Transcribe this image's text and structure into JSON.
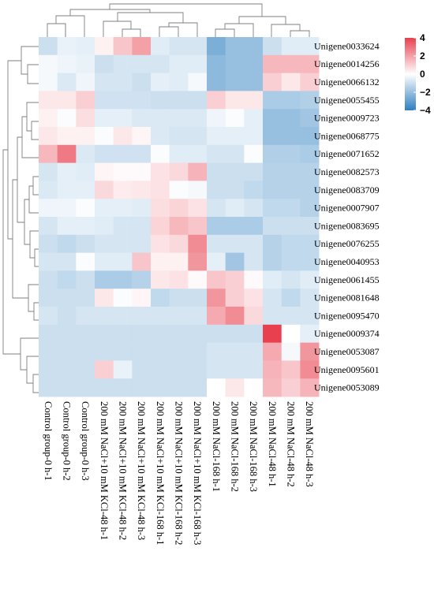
{
  "chart_data": {
    "type": "heatmap",
    "title": "",
    "rows": [
      "Unigene0033624",
      "Unigene0014256",
      "Unigene0066132",
      "Unigene0055455",
      "Unigene0009723",
      "Unigene0068775",
      "Unigene0071652",
      "Unigene0082573",
      "Unigene0083709",
      "Unigene0007907",
      "Unigene0083695",
      "Unigene0076255",
      "Unigene0040953",
      "Unigene0061455",
      "Unigene0081648",
      "Unigene0095470",
      "Unigene0009374",
      "Unigene0053087",
      "Unigene0095601",
      "Unigene0053089"
    ],
    "columns": [
      "Control group-0 h-1",
      "Control group-0 h-2",
      "Control group-0 h-3",
      "200 mM NaCl+10 mM KCl-48 h-1",
      "200 mM NaCl+10 mM KCl-48 h-2",
      "200 mM NaCl+10 mM KCl-48 h-3",
      "200 mM NaCl+10 mM KCl-168 h-1",
      "200 mM NaCl+10 mM KCl-168 h-2",
      "200 mM NaCl+10 mM KCl-168 h-3",
      "200 mM NaCl-168 h-1",
      "200 mM NaCl-168 h-2",
      "200 mM NaCl-168 h-3",
      "200 mM NaCl-48 h-1",
      "200 mM NaCl-48 h-2",
      "200 mM NaCl-48 h-3"
    ],
    "values": [
      [
        -1.0,
        -0.4,
        -0.5,
        0.3,
        1.2,
        2.0,
        -0.6,
        -0.8,
        -0.8,
        -2.5,
        -2.0,
        -2.0,
        -1.0,
        -0.6,
        -0.6
      ],
      [
        -0.2,
        -0.3,
        -0.4,
        -1.0,
        -0.8,
        -0.8,
        -0.8,
        -0.6,
        -0.6,
        -2.2,
        -2.0,
        -2.0,
        1.5,
        1.5,
        1.5
      ],
      [
        -0.2,
        -0.7,
        -0.3,
        -0.8,
        -0.8,
        -1.0,
        -0.5,
        -0.6,
        -0.2,
        -2.2,
        -2.0,
        -2.0,
        1.0,
        0.5,
        1.0
      ],
      [
        0.5,
        0.5,
        1.0,
        -0.9,
        -0.9,
        -0.9,
        -1.0,
        -1.0,
        -1.0,
        1.0,
        0.5,
        0.5,
        -1.6,
        -1.6,
        -1.5
      ],
      [
        0.3,
        -0.1,
        0.7,
        -0.5,
        -0.5,
        -0.7,
        -0.7,
        -0.7,
        -0.7,
        -0.3,
        -0.1,
        -0.5,
        -2.0,
        -2.0,
        -1.8
      ],
      [
        0.5,
        0.3,
        0.3,
        -0.1,
        0.5,
        0.2,
        -0.7,
        -0.8,
        -0.8,
        -0.5,
        -0.5,
        -0.5,
        -2.0,
        -2.0,
        -2.0
      ],
      [
        1.5,
        2.8,
        -0.7,
        -0.9,
        -0.9,
        -0.9,
        -0.1,
        -0.6,
        -0.6,
        -0.8,
        -0.8,
        -0.1,
        -1.5,
        -1.5,
        -1.6
      ],
      [
        -0.8,
        -0.5,
        -0.6,
        0.2,
        0.1,
        0.1,
        0.6,
        0.8,
        1.6,
        -1.0,
        -1.0,
        -1.0,
        -1.4,
        -1.4,
        -1.4
      ],
      [
        -0.7,
        -0.5,
        -0.5,
        0.8,
        0.4,
        0.5,
        0.6,
        -0.1,
        -0.2,
        -1.0,
        -1.0,
        -1.2,
        -1.4,
        -1.4,
        -1.4
      ],
      [
        -0.3,
        -0.3,
        -0.1,
        -0.5,
        -0.5,
        -0.6,
        0.7,
        0.9,
        0.6,
        -0.8,
        -0.6,
        -0.8,
        -1.2,
        -1.2,
        -1.4
      ],
      [
        -0.8,
        -0.5,
        -0.5,
        -0.6,
        -0.8,
        -0.8,
        0.9,
        1.5,
        1.2,
        -1.6,
        -1.6,
        -1.6,
        -1.0,
        -1.0,
        -1.0
      ],
      [
        -1.0,
        -1.2,
        -1.0,
        -0.8,
        -0.8,
        -0.8,
        0.6,
        0.8,
        2.4,
        -0.8,
        -0.8,
        -0.8,
        -1.4,
        -1.2,
        -1.2
      ],
      [
        -0.8,
        -0.8,
        -0.1,
        -0.6,
        -0.6,
        1.2,
        0.3,
        0.3,
        2.2,
        -0.5,
        -1.8,
        -0.8,
        -1.4,
        -1.2,
        -1.2
      ],
      [
        -1.0,
        -1.2,
        -1.0,
        -1.6,
        -1.6,
        -1.4,
        0.5,
        0.6,
        0.1,
        1.2,
        1.0,
        0.1,
        -0.6,
        -0.8,
        -0.6
      ],
      [
        -1.0,
        -1.0,
        -1.0,
        0.5,
        -0.1,
        0.2,
        -1.2,
        -1.0,
        -1.0,
        2.2,
        1.0,
        0.6,
        -0.8,
        -1.2,
        -0.8
      ],
      [
        -0.8,
        -1.0,
        -0.8,
        -0.8,
        -0.8,
        -0.8,
        -0.8,
        -0.8,
        -0.8,
        1.8,
        2.4,
        0.8,
        -0.8,
        -0.8,
        -0.8
      ],
      [
        -1.0,
        -1.0,
        -1.0,
        -1.0,
        -1.0,
        -1.0,
        -1.0,
        -1.0,
        -1.0,
        -1.0,
        -1.0,
        -1.0,
        4.0,
        0.0,
        -0.5
      ],
      [
        -1.0,
        -1.0,
        -1.0,
        -1.0,
        -1.0,
        -1.0,
        -1.0,
        -1.0,
        -1.0,
        -0.8,
        -0.8,
        -0.8,
        1.8,
        -0.2,
        2.2
      ],
      [
        -1.0,
        -1.0,
        -1.0,
        1.0,
        -0.4,
        -1.0,
        -1.0,
        -1.0,
        -1.0,
        -0.8,
        -0.8,
        -0.8,
        1.6,
        1.2,
        2.4
      ],
      [
        -1.0,
        -1.0,
        -1.0,
        -1.0,
        -1.0,
        -1.0,
        -1.0,
        -1.0,
        -1.0,
        0.0,
        0.5,
        0.0,
        1.5,
        1.0,
        1.6
      ]
    ],
    "color_scale": {
      "min": -4,
      "max": 4,
      "low_color": "#2e7fc0",
      "mid_color": "#ffffff",
      "high_color": "#e8404f",
      "ticks": [
        4,
        2,
        0,
        -2,
        -4
      ]
    },
    "legend": {
      "placement": "top-right"
    },
    "row_clustering": true,
    "column_clustering": true,
    "grid": false
  }
}
